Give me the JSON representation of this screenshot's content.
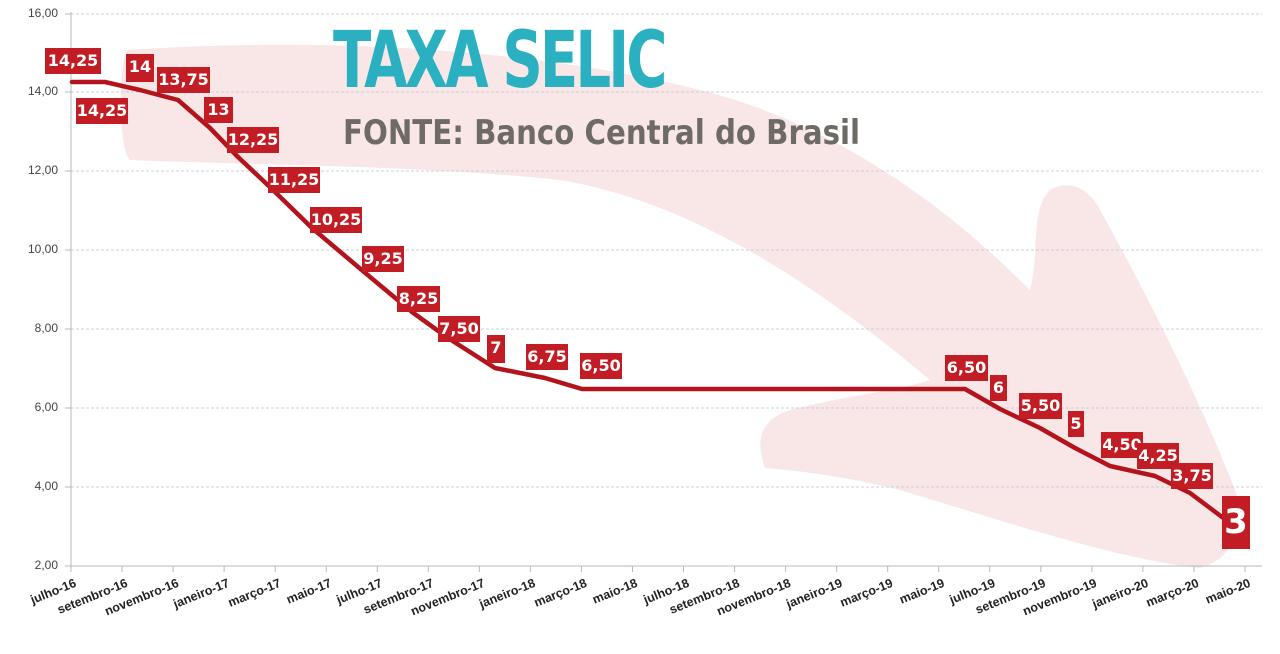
{
  "header": {
    "title": "TAXA SELIC",
    "subtitle": "FONTE: Banco Central do Brasil"
  },
  "colors": {
    "line": "#b3141c",
    "label_bg": "#c21c24",
    "title": "#2ab0c0",
    "subtitle": "#6e6a66",
    "arrow": "#f9e6e6"
  },
  "axis": {
    "y_ticks": [
      "16,00",
      "14,00",
      "12,00",
      "10,00",
      "8,00",
      "6,00",
      "4,00",
      "2,00"
    ],
    "x_ticks": [
      "julho-16",
      "setembro-16",
      "novembro-16",
      "janeiro-17",
      "março-17",
      "maio-17",
      "julho-17",
      "setembro-17",
      "novembro-17",
      "janeiro-18",
      "março-18",
      "maio-18",
      "julho-18",
      "setembro-18",
      "novembro-18",
      "janeiro-19",
      "março-19",
      "maio-19",
      "julho-19",
      "setembro-19",
      "novembro-19",
      "janeiro-20",
      "março-20",
      "maio-20"
    ]
  },
  "labels": [
    "14,25",
    "14,25",
    "14",
    "13,75",
    "13",
    "12,25",
    "11,25",
    "10,25",
    "9,25",
    "8,25",
    "7,50",
    "7",
    "6,75",
    "6,50",
    "6,50",
    "6",
    "5,50",
    "5",
    "4,50",
    "4,25",
    "3,75",
    "3"
  ],
  "chart_data": {
    "type": "line",
    "title": "TAXA SELIC",
    "subtitle": "FONTE: Banco Central do Brasil",
    "xlabel": "",
    "ylabel": "",
    "ylim": [
      2,
      16
    ],
    "grid": true,
    "legend": "none",
    "x_tick_labels": [
      "julho-16",
      "setembro-16",
      "novembro-16",
      "janeiro-17",
      "março-17",
      "maio-17",
      "julho-17",
      "setembro-17",
      "novembro-17",
      "janeiro-18",
      "março-18",
      "maio-18",
      "julho-18",
      "setembro-18",
      "novembro-18",
      "janeiro-19",
      "março-19",
      "maio-19",
      "julho-19",
      "setembro-19",
      "novembro-19",
      "janeiro-20",
      "março-20",
      "maio-20"
    ],
    "y_tick_labels": [
      "2,00",
      "4,00",
      "6,00",
      "8,00",
      "10,00",
      "12,00",
      "14,00",
      "16,00"
    ],
    "series": [
      {
        "name": "Selic",
        "x": [
          "julho-16",
          "agosto-16",
          "outubro-16",
          "novembro-16",
          "dezembro-16",
          "janeiro-17",
          "fevereiro-17",
          "abril-17",
          "maio-17",
          "julho-17",
          "setembro-17",
          "outubro-17",
          "dezembro-17",
          "fevereiro-18",
          "março-18",
          "julho-19",
          "agosto-19",
          "setembro-19",
          "outubro-19",
          "dezembro-19",
          "fevereiro-20",
          "março-20",
          "maio-20"
        ],
        "values": [
          14.25,
          14.25,
          14.0,
          13.75,
          13.75,
          13.0,
          12.25,
          11.25,
          10.25,
          9.25,
          8.25,
          7.5,
          7.0,
          6.75,
          6.5,
          6.5,
          6.0,
          5.5,
          5.0,
          4.5,
          4.25,
          3.75,
          3.0
        ]
      }
    ],
    "data_labels": [
      "14,25",
      "14,25",
      "14",
      "13,75",
      "13",
      "12,25",
      "11,25",
      "10,25",
      "9,25",
      "8,25",
      "7,50",
      "7",
      "6,75",
      "6,50",
      "6,50",
      "6",
      "5,50",
      "5",
      "4,50",
      "4,25",
      "3,75",
      "3"
    ],
    "annotations": [
      "Large decorative downward arrow behind the line"
    ]
  }
}
